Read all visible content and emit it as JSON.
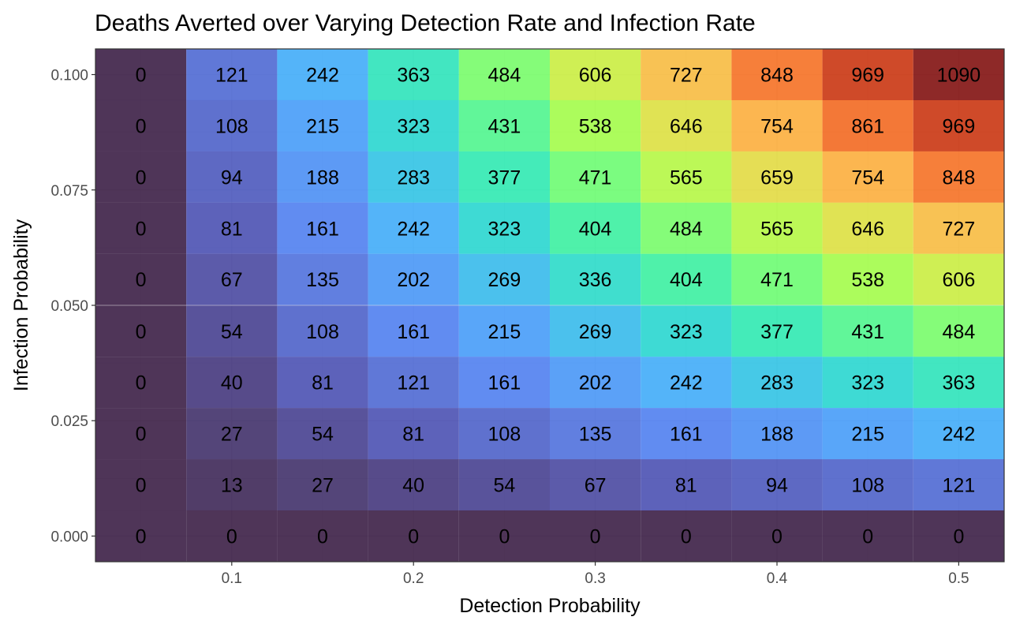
{
  "chart_data": {
    "type": "heatmap",
    "title": "Deaths Averted over Varying Detection Rate and Infection Rate",
    "xlabel": "Detection Probability",
    "ylabel": "Infection Probability",
    "x": [
      0.05,
      0.1,
      0.15,
      0.2,
      0.25,
      0.3,
      0.35,
      0.4,
      0.45,
      0.5
    ],
    "y": [
      0.1,
      0.0889,
      0.0778,
      0.0667,
      0.0556,
      0.0444,
      0.0333,
      0.0222,
      0.0111,
      0.0
    ],
    "x_ticks": [
      {
        "value": 0.1,
        "label": "0.1"
      },
      {
        "value": 0.2,
        "label": "0.2"
      },
      {
        "value": 0.3,
        "label": "0.3"
      },
      {
        "value": 0.4,
        "label": "0.4"
      },
      {
        "value": 0.5,
        "label": "0.5"
      }
    ],
    "y_ticks": [
      {
        "value": 0.1,
        "label": "0.100"
      },
      {
        "value": 0.075,
        "label": "0.075"
      },
      {
        "value": 0.05,
        "label": "0.050"
      },
      {
        "value": 0.025,
        "label": "0.025"
      },
      {
        "value": 0.0,
        "label": "0.000"
      }
    ],
    "xlim": [
      0.025,
      0.525
    ],
    "ylim": [
      -0.00556,
      0.10556
    ],
    "values": [
      [
        0,
        121,
        242,
        363,
        484,
        606,
        727,
        848,
        969,
        1090
      ],
      [
        0,
        108,
        215,
        323,
        431,
        538,
        646,
        754,
        861,
        969
      ],
      [
        0,
        94,
        188,
        283,
        377,
        471,
        565,
        659,
        754,
        848
      ],
      [
        0,
        81,
        161,
        242,
        323,
        404,
        484,
        565,
        646,
        727
      ],
      [
        0,
        67,
        135,
        202,
        269,
        336,
        404,
        471,
        538,
        606
      ],
      [
        0,
        54,
        108,
        161,
        215,
        269,
        323,
        377,
        431,
        484
      ],
      [
        0,
        40,
        81,
        121,
        161,
        202,
        242,
        283,
        323,
        363
      ],
      [
        0,
        27,
        54,
        81,
        108,
        135,
        161,
        188,
        215,
        242
      ],
      [
        0,
        13,
        27,
        40,
        54,
        67,
        81,
        94,
        108,
        121
      ],
      [
        0,
        0,
        0,
        0,
        0,
        0,
        0,
        0,
        0,
        0
      ]
    ],
    "color_scale": {
      "name": "turbo",
      "min": 0,
      "max": 1090,
      "stops": [
        "#30123b",
        "#4145ab",
        "#4675ed",
        "#39a2fc",
        "#1bcfd4",
        "#24eca6",
        "#61fc6c",
        "#a4fc3b",
        "#d1e834",
        "#f3c63a",
        "#fe9b2d",
        "#f36315",
        "#d93806",
        "#b11901",
        "#7a0402"
      ]
    },
    "cell_opacity": 0.85,
    "grid": true,
    "legend": "none"
  }
}
